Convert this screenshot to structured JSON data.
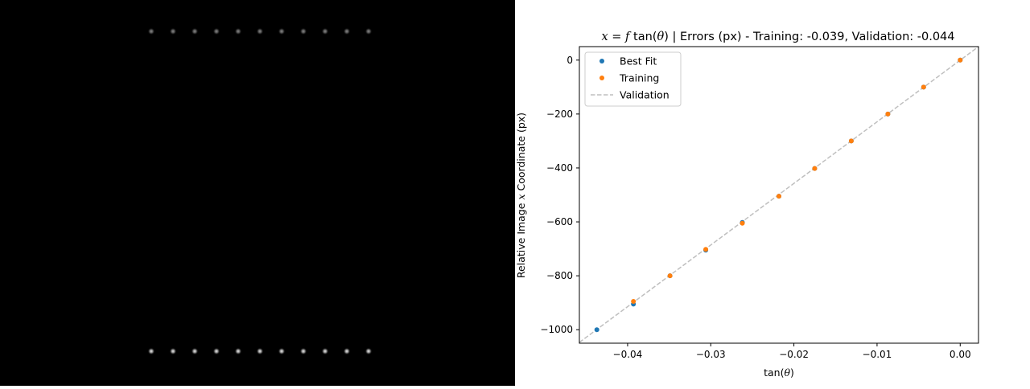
{
  "left_image": {
    "background": "#000000",
    "spot_color": "#cfcfcf",
    "rows": [
      {
        "name": "top-row",
        "count": 11,
        "brightness": 0.55
      },
      {
        "name": "bottom-row",
        "count": 11,
        "brightness": 0.95
      }
    ]
  },
  "chart_data": {
    "type": "scatter",
    "title": "x = f tan(θ) | Errors (px) - Training: -0.039, Validation: -0.044",
    "title_parts": {
      "var_x": "x",
      "eq": " = ",
      "var_f": "f",
      "func": " tan(",
      "var_theta": "θ",
      "close": ") | Errors (px) - Training: -0.039, Validation: -0.044"
    },
    "xlabel": "tan(θ)",
    "xlabel_parts": {
      "func": "tan(",
      "var": "θ",
      "close": ")"
    },
    "ylabel": "Relative Image x Coordinate (px)",
    "ylabel_parts": {
      "pre": "Relative Image ",
      "var": "x",
      "post": " Coordinate (px)"
    },
    "xlim": [
      -0.0458,
      0.0022
    ],
    "ylim": [
      -1050,
      50
    ],
    "xticks": [
      -0.04,
      -0.03,
      -0.02,
      -0.01,
      0.0
    ],
    "xtick_labels": [
      "−0.04",
      "−0.03",
      "−0.02",
      "−0.01",
      "0.00"
    ],
    "yticks": [
      0,
      -200,
      -400,
      -600,
      -800,
      -1000
    ],
    "ytick_labels": [
      "0",
      "−200",
      "−400",
      "−600",
      "−800",
      "−1000"
    ],
    "grid": false,
    "legend_position": "top-left",
    "series": [
      {
        "name": "Best Fit",
        "kind": "scatter",
        "color": "#1f77b4",
        "x": [
          -0.0437,
          -0.0393,
          -0.0349,
          -0.0306,
          -0.0262,
          -0.0218,
          -0.0175,
          -0.0131,
          -0.0087,
          -0.0044,
          0.0
        ],
        "y": [
          -1000,
          -905,
          -800,
          -705,
          -602,
          -505,
          -402,
          -300,
          -200,
          -100,
          0
        ]
      },
      {
        "name": "Training",
        "kind": "scatter",
        "color": "#ff7f0e",
        "x": [
          -0.0393,
          -0.0349,
          -0.0306,
          -0.0262,
          -0.0218,
          -0.0175,
          -0.0131,
          -0.0087,
          -0.0044,
          0.0
        ],
        "y": [
          -895,
          -800,
          -702,
          -605,
          -505,
          -402,
          -300,
          -200,
          -100,
          0
        ]
      },
      {
        "name": "Validation",
        "kind": "dashed-line",
        "color": "#bfbfbf",
        "x": [
          -0.0458,
          0.0022
        ],
        "y": [
          -1047,
          50
        ]
      }
    ]
  }
}
